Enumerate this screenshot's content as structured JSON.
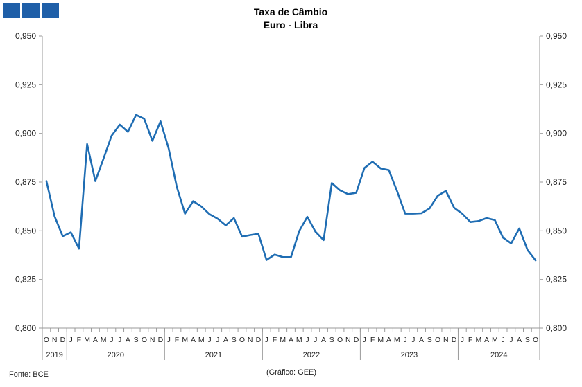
{
  "chart_data": {
    "type": "line",
    "title": "Taxa de Câmbio",
    "subtitle": "Euro - Libra",
    "ylim": [
      0.8,
      0.95
    ],
    "yticks": [
      "0,800",
      "0,825",
      "0,850",
      "0,875",
      "0,900",
      "0,925",
      "0,950"
    ],
    "yticks_values": [
      0.8,
      0.825,
      0.85,
      0.875,
      0.9,
      0.925,
      0.95
    ],
    "month_labels": [
      "O",
      "N",
      "D",
      "J",
      "F",
      "M",
      "A",
      "M",
      "J",
      "J",
      "A",
      "S",
      "O",
      "N",
      "D",
      "J",
      "F",
      "M",
      "A",
      "M",
      "J",
      "J",
      "A",
      "S",
      "O",
      "N",
      "D",
      "J",
      "F",
      "M",
      "A",
      "M",
      "J",
      "J",
      "A",
      "S",
      "O",
      "N",
      "D",
      "J",
      "F",
      "M",
      "A",
      "M",
      "J",
      "J",
      "A",
      "S",
      "O",
      "N",
      "D",
      "J",
      "F",
      "M",
      "A",
      "M",
      "J",
      "J",
      "A",
      "S",
      "O"
    ],
    "years": [
      {
        "label": "2019",
        "start": 0,
        "count": 3
      },
      {
        "label": "2020",
        "start": 3,
        "count": 12
      },
      {
        "label": "2021",
        "start": 15,
        "count": 12
      },
      {
        "label": "2022",
        "start": 27,
        "count": 12
      },
      {
        "label": "2023",
        "start": 39,
        "count": 12
      },
      {
        "label": "2024",
        "start": 51,
        "count": 10
      }
    ],
    "series": [
      {
        "values": [
          0.8755,
          0.8575,
          0.8472,
          0.8492,
          0.8408,
          0.8945,
          0.8755,
          0.887,
          0.8988,
          0.9045,
          0.9008,
          0.9095,
          0.9075,
          0.8962,
          0.9062,
          0.8922,
          0.8725,
          0.8588,
          0.8652,
          0.8625,
          0.8585,
          0.8562,
          0.8528,
          0.8565,
          0.847,
          0.8478,
          0.8485,
          0.835,
          0.8378,
          0.8365,
          0.8365,
          0.8498,
          0.8572,
          0.8495,
          0.8452,
          0.8745,
          0.8708,
          0.8688,
          0.8695,
          0.8822,
          0.8855,
          0.882,
          0.8812,
          0.8705,
          0.8588,
          0.8588,
          0.859,
          0.8615,
          0.868,
          0.8705,
          0.8618,
          0.8588,
          0.8545,
          0.855,
          0.8565,
          0.8555,
          0.8465,
          0.8435,
          0.8512,
          0.8402,
          0.8348
        ]
      }
    ],
    "line_color": "#1f6db3",
    "grid": false
  },
  "footer": {
    "source": "Fonte: BCE",
    "credit": "(Gráfico: GEE)"
  },
  "logo": {
    "color": "#1f5fa8"
  }
}
